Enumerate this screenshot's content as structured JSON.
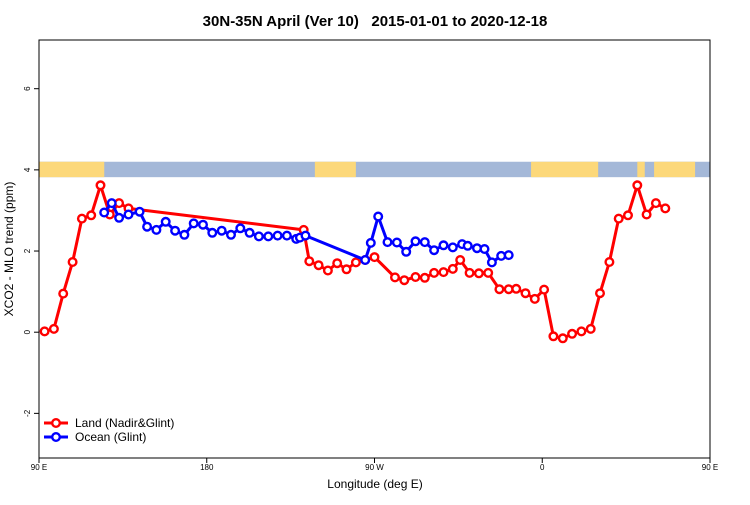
{
  "chart_data": {
    "type": "line",
    "title": "30N-35N April (Ver 10)   2015-01-01 to 2020-12-18",
    "xlabel": "Longitude (deg E)",
    "ylabel": "XCO2 - MLO trend (ppm)",
    "xlim": [
      90,
      450
    ],
    "ylim": [
      -3.1,
      7.2
    ],
    "x_ticks": [
      90,
      180,
      270,
      360,
      450,
      540
    ],
    "x_tick_labels": [
      "90 E",
      "180",
      "90 W",
      "0",
      "90 E",
      "180"
    ],
    "y_ticks": [
      -2,
      0,
      2,
      4,
      6
    ],
    "y_tick_labels": [
      "-2",
      "0",
      "2",
      "4",
      "6"
    ],
    "grid": false,
    "legend_position": "bottom-left",
    "land_ocean_strip": {
      "y_range": [
        3.82,
        4.2
      ],
      "ocean_color": "#a4b8d8",
      "land_color": "#fcd87a",
      "land_segments": [
        [
          90,
          125
        ],
        [
          238,
          260
        ],
        [
          354,
          390
        ],
        [
          411,
          415
        ],
        [
          420,
          442
        ]
      ]
    },
    "series": [
      {
        "name": "Land (Nadir&Glint)",
        "color": "#ff0000",
        "x": [
          93,
          98,
          103,
          108,
          113,
          118,
          123,
          128,
          133,
          138,
          232,
          235,
          240,
          245,
          250,
          255,
          260,
          265,
          270,
          281,
          286,
          292,
          297,
          302,
          307,
          312,
          316,
          321,
          326,
          331,
          337,
          342,
          346,
          351,
          356,
          361,
          366,
          371,
          376,
          381,
          386,
          391,
          396,
          401,
          406,
          411,
          416,
          421,
          426,
          431,
          436,
          441,
          446
        ],
        "y": [
          0.02,
          0.08,
          0.95,
          1.73,
          2.8,
          2.88,
          3.62,
          2.9,
          3.18,
          3.05,
          2.52,
          1.75,
          1.65,
          1.52,
          1.7,
          1.55,
          1.72,
          1.78,
          1.85,
          1.35,
          1.28,
          1.36,
          1.34,
          1.46,
          1.48,
          1.56,
          1.78,
          1.46,
          1.45,
          1.46,
          1.06,
          1.06,
          1.07,
          0.96,
          0.82,
          1.05,
          -0.1,
          -0.15,
          -0.04,
          0.02,
          0.08,
          0.96,
          1.73,
          2.8,
          2.88,
          3.62,
          2.9,
          3.18,
          3.05,
          null,
          null,
          null,
          null
        ]
      },
      {
        "name": "Ocean (Glint)",
        "color": "#0000ff",
        "x": [
          125,
          129,
          133,
          138,
          144,
          148,
          153,
          158,
          163,
          168,
          173,
          178,
          183,
          188,
          193,
          198,
          203,
          208,
          213,
          218,
          223,
          228,
          230,
          233,
          265,
          268,
          272,
          277,
          282,
          287,
          292,
          297,
          302,
          307,
          312,
          317,
          320,
          325,
          329,
          333,
          338,
          342,
          346,
          351,
          356,
          361,
          366,
          371,
          376,
          381,
          386,
          391,
          396,
          401,
          406,
          411,
          416,
          421,
          426,
          431,
          436,
          441,
          446
        ],
        "y": [
          2.95,
          3.18,
          2.82,
          2.9,
          2.97,
          2.6,
          2.52,
          2.72,
          2.5,
          2.4,
          2.68,
          2.65,
          2.45,
          2.5,
          2.4,
          2.56,
          2.45,
          2.36,
          2.36,
          2.38,
          2.38,
          2.3,
          2.33,
          2.38,
          1.78,
          2.2,
          2.85,
          2.22,
          2.21,
          1.98,
          2.24,
          2.22,
          2.02,
          2.14,
          2.09,
          2.17,
          2.13,
          2.07,
          2.05,
          1.72,
          1.88,
          1.9,
          null,
          null,
          null,
          null,
          null,
          null,
          null,
          null,
          null,
          null,
          null,
          null,
          null,
          null,
          null,
          null,
          null,
          null,
          null,
          null,
          null
        ]
      }
    ]
  }
}
